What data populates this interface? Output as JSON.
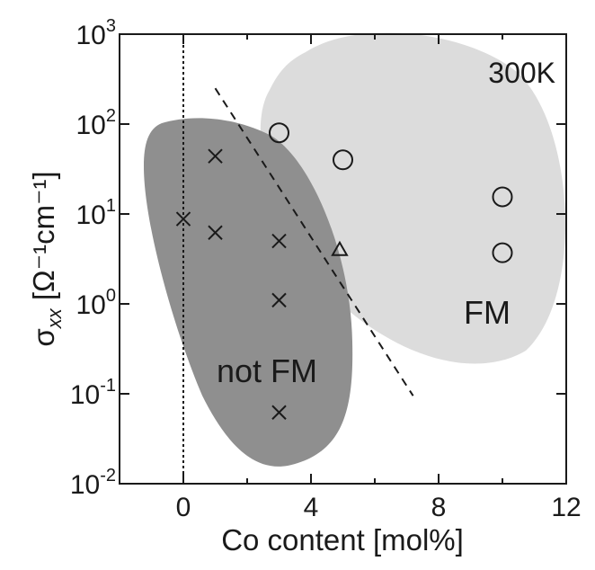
{
  "chart_data": {
    "type": "scatter",
    "xlabel": "Co content [mol%]",
    "ylabel": {
      "symbol": "σ",
      "subscript": "xx",
      "rest": " [Ω⁻¹cm⁻¹]"
    },
    "xlim": [
      -2,
      12
    ],
    "ylim_log10": [
      -2,
      3
    ],
    "y_scale": "log",
    "x_ticks": [
      {
        "value": 0,
        "label": "0"
      },
      {
        "value": 4,
        "label": "4"
      },
      {
        "value": 8,
        "label": "8"
      },
      {
        "value": 12,
        "label": "12"
      }
    ],
    "y_ticks": [
      {
        "exp": -2,
        "base": "10",
        "power": "-2"
      },
      {
        "exp": -1,
        "base": "10",
        "power": "-1"
      },
      {
        "exp": 0,
        "base": "10",
        "power": "0"
      },
      {
        "exp": 1,
        "base": "10",
        "power": "1"
      },
      {
        "exp": 2,
        "base": "10",
        "power": "2"
      },
      {
        "exp": 3,
        "base": "10",
        "power": "3"
      }
    ],
    "annotation": "300K",
    "regions": [
      {
        "label": "not FM",
        "color": "#8f8f8f"
      },
      {
        "label": "FM",
        "color": "#dcdcdc"
      }
    ],
    "series": [
      {
        "marker": "cross",
        "points": [
          [
            0,
            8.8
          ],
          [
            1,
            44
          ],
          [
            1,
            6.2
          ],
          [
            3,
            5.0
          ],
          [
            3,
            1.1
          ],
          [
            3,
            0.062
          ]
        ]
      },
      {
        "marker": "circle",
        "points": [
          [
            3,
            80
          ],
          [
            5,
            40
          ],
          [
            10,
            15.5
          ],
          [
            10,
            3.7
          ]
        ]
      },
      {
        "marker": "triangle",
        "points": [
          [
            4.9,
            4.0
          ]
        ]
      }
    ],
    "reference_lines": [
      {
        "style": "dotted",
        "orientation": "vertical",
        "x": 0
      },
      {
        "style": "dashed",
        "from": [
          1,
          250
        ],
        "to": [
          7.2,
          0.095
        ]
      }
    ]
  }
}
